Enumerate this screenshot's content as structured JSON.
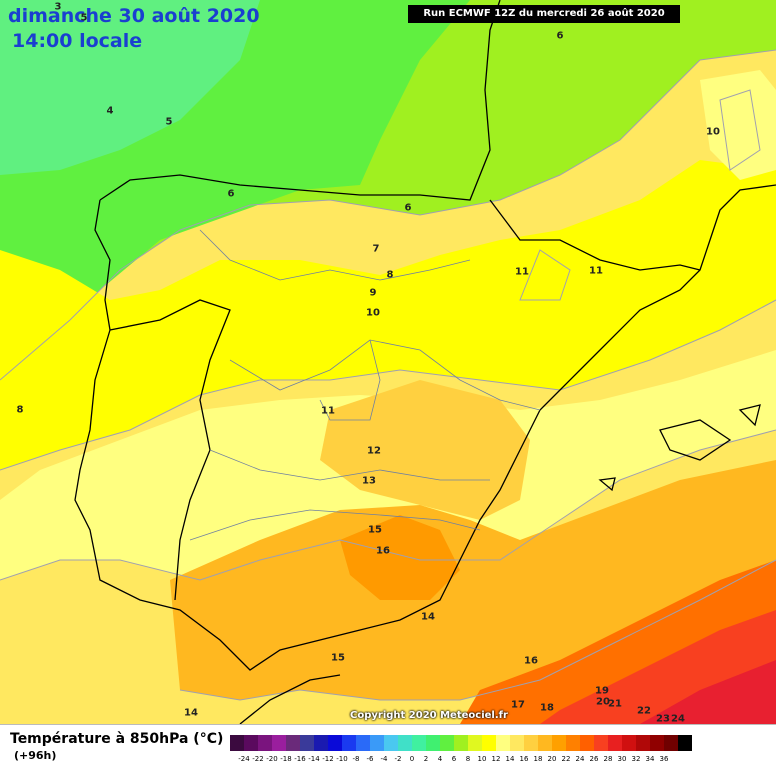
{
  "header": {
    "date": "dimanche 30 août 2020",
    "time": "14:00 locale",
    "run": "Run ECMWF 12Z du mercredi 26 août 2020"
  },
  "copyright": "Copyright 2020 Meteociel.fr",
  "legend": {
    "title": "Température à 850hPa (°C)",
    "subtitle": "(+96h)",
    "tick_labels": [
      "-24",
      "-22",
      "-20",
      "-18",
      "-16",
      "-14",
      "-12",
      "-10",
      "-8",
      "-6",
      "-4",
      "-2",
      "0",
      "2",
      "4",
      "6",
      "8",
      "10",
      "12",
      "14",
      "16",
      "18",
      "20",
      "22",
      "24",
      "26",
      "28",
      "30",
      "32",
      "34",
      "36"
    ],
    "colors": [
      "#3b0a3f",
      "#5a0a5e",
      "#7a147e",
      "#9a1e9e",
      "#6a2a7a",
      "#3a3a9a",
      "#1a1ab0",
      "#0a0ad8",
      "#1a3af0",
      "#2a6af8",
      "#3a9af8",
      "#4ac8f0",
      "#40e0c8",
      "#40f0a0",
      "#40f070",
      "#60f040",
      "#a0f020",
      "#e0f820",
      "#ffff00",
      "#ffff80",
      "#ffe860",
      "#ffd040",
      "#ffb820",
      "#ffa000",
      "#ff8000",
      "#ff6000",
      "#f84020",
      "#e82020",
      "#d01010",
      "#b00808",
      "#900000",
      "#700000",
      "#000000"
    ]
  },
  "map_labels": [
    {
      "text": "3"
    },
    {
      "text": "5"
    },
    {
      "text": "6"
    },
    {
      "text": "4"
    },
    {
      "text": "5"
    },
    {
      "text": "6"
    },
    {
      "text": "6"
    },
    {
      "text": "7"
    },
    {
      "text": "8"
    },
    {
      "text": "9"
    },
    {
      "text": "10"
    },
    {
      "text": "11"
    },
    {
      "text": "11"
    },
    {
      "text": "10"
    },
    {
      "text": "8"
    },
    {
      "text": "11"
    },
    {
      "text": "12"
    },
    {
      "text": "13"
    },
    {
      "text": "15"
    },
    {
      "text": "16"
    },
    {
      "text": "14"
    },
    {
      "text": "15"
    },
    {
      "text": "16"
    },
    {
      "text": "17"
    },
    {
      "text": "18"
    },
    {
      "text": "19"
    },
    {
      "text": "20"
    },
    {
      "text": "21"
    },
    {
      "text": "22"
    },
    {
      "text": "23"
    },
    {
      "text": "24"
    },
    {
      "text": "14"
    }
  ]
}
